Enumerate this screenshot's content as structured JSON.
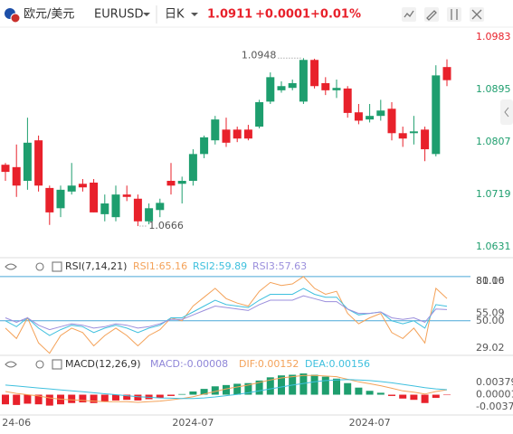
{
  "header": {
    "pair_name": "欧元/美元",
    "symbol": "EURUSD",
    "period": "日K",
    "price": "1.0911",
    "change": "+0.0001",
    "change_percent": "+0.01%"
  },
  "chart_data": [
    {
      "type": "candlestick",
      "up_color": "#1e9e6e",
      "down_color": "#e8212b",
      "categories": [
        null,
        "24-06",
        null,
        null,
        null,
        null,
        null,
        null,
        null,
        null,
        null,
        null,
        null,
        null,
        null,
        null,
        null,
        "2024-07",
        null,
        null,
        null,
        null,
        null,
        null,
        null,
        null,
        null,
        null,
        null,
        null,
        null,
        null,
        null,
        "2024-07",
        null,
        null,
        null,
        null,
        null,
        null,
        null
      ],
      "open": [
        1.0769,
        1.0765,
        1.0742,
        1.081,
        1.073,
        1.0696,
        1.0724,
        1.0737,
        1.0739,
        1.0686,
        1.0681,
        1.0719,
        1.0712,
        1.0674,
        1.0693,
        1.0742,
        1.0737,
        1.0742,
        1.0787,
        1.081,
        1.0828,
        1.0828,
        1.0828,
        1.0833,
        1.0875,
        1.0894,
        1.0898,
        1.0875,
        1.0945,
        1.0906,
        1.0894,
        1.0897,
        1.0857,
        1.0845,
        1.0851,
        1.0863,
        1.0822,
        1.0822,
        1.0828,
        1.0787,
        1.0933
      ],
      "high": [
        1.0772,
        1.0803,
        1.0848,
        1.0818,
        1.0734,
        1.0734,
        1.0772,
        1.0745,
        1.0745,
        1.0719,
        1.0734,
        1.0734,
        1.0719,
        1.0704,
        1.0712,
        1.0772,
        1.0749,
        1.0795,
        1.0818,
        1.0851,
        1.0848,
        1.0833,
        1.0836,
        1.0878,
        1.0924,
        1.0909,
        1.0912,
        1.0948,
        1.0947,
        1.0916,
        1.0912,
        1.0901,
        1.0871,
        1.0871,
        1.0878,
        1.0874,
        1.0833,
        1.0851,
        1.0833,
        1.0936,
        1.0946
      ],
      "low": [
        1.0742,
        1.0715,
        1.0727,
        1.0724,
        1.0668,
        1.0681,
        1.0719,
        1.0724,
        1.0689,
        1.0674,
        1.0674,
        1.0708,
        1.0666,
        1.0669,
        1.0681,
        1.0719,
        1.0704,
        1.0734,
        1.078,
        1.0803,
        1.0799,
        1.0807,
        1.081,
        1.083,
        1.0871,
        1.089,
        1.0894,
        1.0871,
        1.0897,
        1.0886,
        1.0881,
        1.0848,
        1.0837,
        1.084,
        1.0843,
        1.081,
        1.0799,
        1.0803,
        1.0775,
        1.0783,
        1.0901
      ],
      "close": [
        1.0757,
        1.0734,
        1.0806,
        1.0734,
        1.0689,
        1.0727,
        1.0734,
        1.0731,
        1.0689,
        1.0704,
        1.0719,
        1.0715,
        1.0674,
        1.0696,
        1.0705,
        1.0734,
        1.0742,
        1.0787,
        1.0815,
        1.0845,
        1.0806,
        1.0813,
        1.0813,
        1.0874,
        1.0916,
        1.0901,
        1.0906,
        1.0945,
        1.0901,
        1.0894,
        1.0898,
        1.0856,
        1.0843,
        1.0851,
        1.086,
        1.0822,
        1.0813,
        1.0825,
        1.0795,
        1.0919,
        1.0911
      ],
      "ylim": [
        1.0616,
        1.0997
      ],
      "yticks": [
        1.0983,
        1.0895,
        1.0807,
        1.0719,
        1.0631
      ],
      "high_label": 1.0948,
      "low_label": 1.0666
    },
    {
      "type": "line",
      "title": "RSI(7,14,21)",
      "series": [
        {
          "name": "RSI1:65.16",
          "color": "#f4a259",
          "values": [
            45,
            38,
            52,
            35,
            28,
            40,
            45,
            42,
            33,
            40,
            45,
            40,
            33,
            40,
            44,
            52,
            50,
            60,
            66,
            72,
            65,
            62,
            60,
            70,
            76,
            74,
            75,
            80,
            72,
            68,
            70,
            55,
            48,
            52,
            55,
            42,
            38,
            45,
            35,
            72,
            65.16
          ]
        },
        {
          "name": "RSI2:59.89",
          "color": "#3fc0de",
          "values": [
            50,
            46,
            52,
            45,
            40,
            44,
            47,
            46,
            42,
            45,
            47,
            45,
            42,
            45,
            47,
            52,
            52,
            56,
            60,
            64,
            61,
            60,
            59,
            64,
            68,
            68,
            68,
            72,
            68,
            66,
            66,
            58,
            54,
            55,
            56,
            50,
            48,
            50,
            45,
            61,
            59.89
          ]
        },
        {
          "name": "RSI3:57.63",
          "color": "#9b8fdc",
          "values": [
            52,
            49,
            52,
            47,
            44,
            46,
            48,
            47,
            45,
            46,
            48,
            47,
            45,
            46,
            48,
            51,
            51,
            54,
            57,
            60,
            59,
            58,
            57,
            61,
            64,
            64,
            64,
            67,
            65,
            63,
            63,
            58,
            55,
            55,
            56,
            52,
            51,
            52,
            49,
            58,
            57.63
          ]
        }
      ],
      "ylim": [
        29.02,
        81.16
      ],
      "yticks": [
        {
          "value": 80,
          "label": "80.00"
        },
        81.16,
        55.09,
        {
          "value": 50,
          "label": "50.00"
        },
        29.02
      ]
    },
    {
      "type": "combo",
      "title": "MACD(12,26,9)",
      "series": [
        {
          "name": "MACD:-0.00008",
          "type": "bar",
          "color": "#8f86d8",
          "up_color": "#1e9e6e",
          "down_color": "#e8212b",
          "values": [
            -0.003,
            -0.0032,
            -0.0028,
            -0.003,
            -0.0034,
            -0.003,
            -0.0026,
            -0.0024,
            -0.0026,
            -0.0022,
            -0.0018,
            -0.0016,
            -0.0018,
            -0.0014,
            -0.001,
            -0.0004,
            0.0002,
            0.001,
            0.0018,
            0.0026,
            0.003,
            0.0034,
            0.0036,
            0.0044,
            0.0054,
            0.006,
            0.0062,
            0.0066,
            0.0062,
            0.0056,
            0.005,
            0.0036,
            0.0022,
            0.0012,
            0.0006,
            -0.0004,
            -0.0012,
            -0.0016,
            -0.0026,
            -0.001,
            -8e-05
          ]
        },
        {
          "name": "DIF:0.00152",
          "type": "line",
          "color": "#f4a259",
          "values": [
            0.001,
            0.0004,
            0.0,
            -0.0004,
            -0.001,
            -0.0014,
            -0.0016,
            -0.0018,
            -0.002,
            -0.0022,
            -0.0022,
            -0.0022,
            -0.0024,
            -0.0022,
            -0.002,
            -0.0016,
            -0.0012,
            -0.0006,
            0.0002,
            0.001,
            0.0018,
            0.0024,
            0.003,
            0.0038,
            0.0046,
            0.0052,
            0.0056,
            0.006,
            0.006,
            0.0058,
            0.0056,
            0.0048,
            0.004,
            0.0034,
            0.0028,
            0.002,
            0.0012,
            0.0008,
            0.0002,
            0.001,
            0.00152
          ]
        },
        {
          "name": "DEA:0.00156",
          "type": "line",
          "color": "#3fc0de",
          "values": [
            0.003,
            0.0027,
            0.0024,
            0.0021,
            0.0018,
            0.0015,
            0.0012,
            0.0009,
            0.0006,
            0.0003,
            0.0,
            -0.0003,
            -0.0006,
            -0.0008,
            -0.001,
            -0.0011,
            -0.0012,
            -0.0012,
            -0.001,
            -0.0007,
            -0.0003,
            0.0001,
            0.0006,
            0.0012,
            0.0018,
            0.0024,
            0.003,
            0.0035,
            0.004,
            0.0044,
            0.0046,
            0.0047,
            0.0046,
            0.0044,
            0.0041,
            0.0037,
            0.0032,
            0.0027,
            0.0022,
            0.0018,
            0.00156
          ]
        }
      ],
      "ylim": [
        -0.0052,
        0.0069
      ],
      "yticks": [
        0.00379,
        1e-05,
        -0.00377
      ]
    }
  ]
}
